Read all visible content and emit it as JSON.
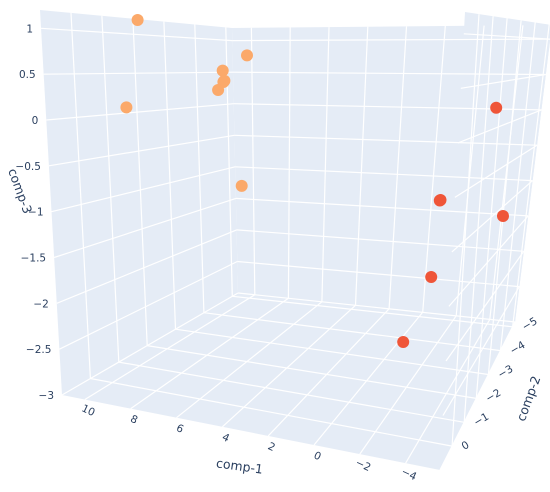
{
  "chart_data": {
    "type": "scatter3d",
    "axes": {
      "x": {
        "title": "comp-1",
        "range": [
          11,
          -5.5
        ],
        "ticks": [
          10,
          8,
          6,
          4,
          2,
          0,
          -2,
          -4
        ],
        "tick_labels": [
          "10",
          "8",
          "6",
          "4",
          "2",
          "0",
          "−2",
          "−4"
        ]
      },
      "y": {
        "title": "comp-2",
        "range": [
          1,
          -5.2
        ],
        "ticks": [
          0,
          -1,
          -2,
          -3,
          -4,
          -5
        ],
        "tick_labels": [
          "0",
          "−1",
          "−2",
          "−3",
          "−4",
          "−5"
        ]
      },
      "z": {
        "title": "comp-3",
        "range": [
          -3,
          1.2
        ],
        "ticks": [
          1,
          0.5,
          0,
          -0.5,
          -1,
          -1.5,
          -2,
          -2.5,
          -3
        ],
        "tick_labels": [
          "1",
          "0.5",
          "0",
          "−0.5",
          "−1",
          "−1.5",
          "−2",
          "−2.5",
          "−3"
        ]
      }
    },
    "grid": true,
    "legend": "none",
    "colors": {
      "background": "#e5ecf6",
      "grid": "#ffffff",
      "text": "#2a3f5f"
    },
    "series": [
      {
        "color": "#fba96a",
        "points": [
          {
            "x": 9.5,
            "y": -1.0,
            "z": 1.15
          },
          {
            "x": 6.2,
            "y": -2.2,
            "z": 0.75
          },
          {
            "x": 7.8,
            "y": -2.6,
            "z": 0.55
          },
          {
            "x": 7.6,
            "y": -2.5,
            "z": 0.42
          },
          {
            "x": 7.9,
            "y": -2.7,
            "z": 0.4
          },
          {
            "x": 7.9,
            "y": -2.5,
            "z": 0.3
          },
          {
            "x": 9.5,
            "y": -0.5,
            "z": 0.12
          },
          {
            "x": 7.2,
            "y": -2.8,
            "z": -0.95
          }
        ]
      },
      {
        "color": "#ef5538",
        "points": [
          {
            "x": -4.0,
            "y": -4.0,
            "z": 0.1
          },
          {
            "x": -2.8,
            "y": -2.4,
            "z": -0.9
          },
          {
            "x": -2.7,
            "y": -2.5,
            "z": -0.92
          },
          {
            "x": -5.2,
            "y": -3.5,
            "z": -1.2
          },
          {
            "x": -2.6,
            "y": -2.4,
            "z": -1.8
          },
          {
            "x": -2.0,
            "y": -1.6,
            "z": -2.4
          }
        ]
      }
    ]
  }
}
